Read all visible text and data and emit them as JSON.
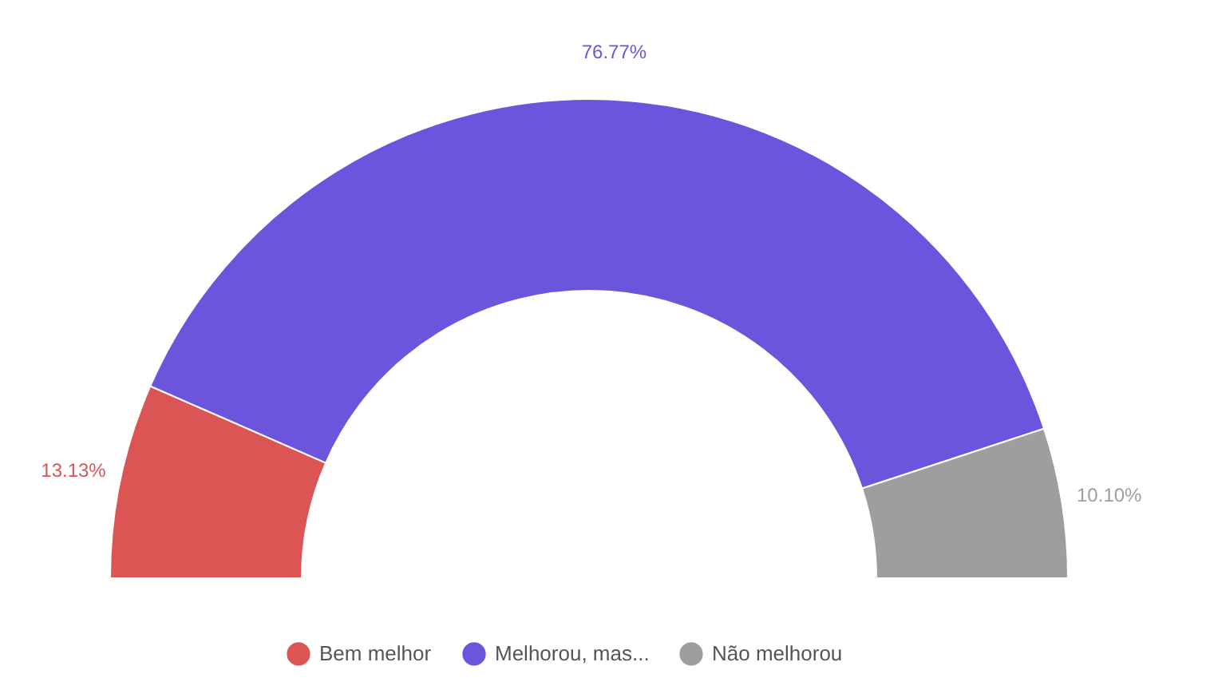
{
  "chart_data": {
    "type": "donut",
    "categories": [
      "Bem melhor",
      "Melhorou, mas...",
      "Não melhorou"
    ],
    "values": [
      13.13,
      76.77,
      10.1
    ],
    "value_labels": [
      "13.13%",
      "76.77%",
      "10.10%"
    ],
    "colors": [
      "#dc5555",
      "#6c55dc",
      "#9e9e9e"
    ],
    "legend": "bottom"
  }
}
